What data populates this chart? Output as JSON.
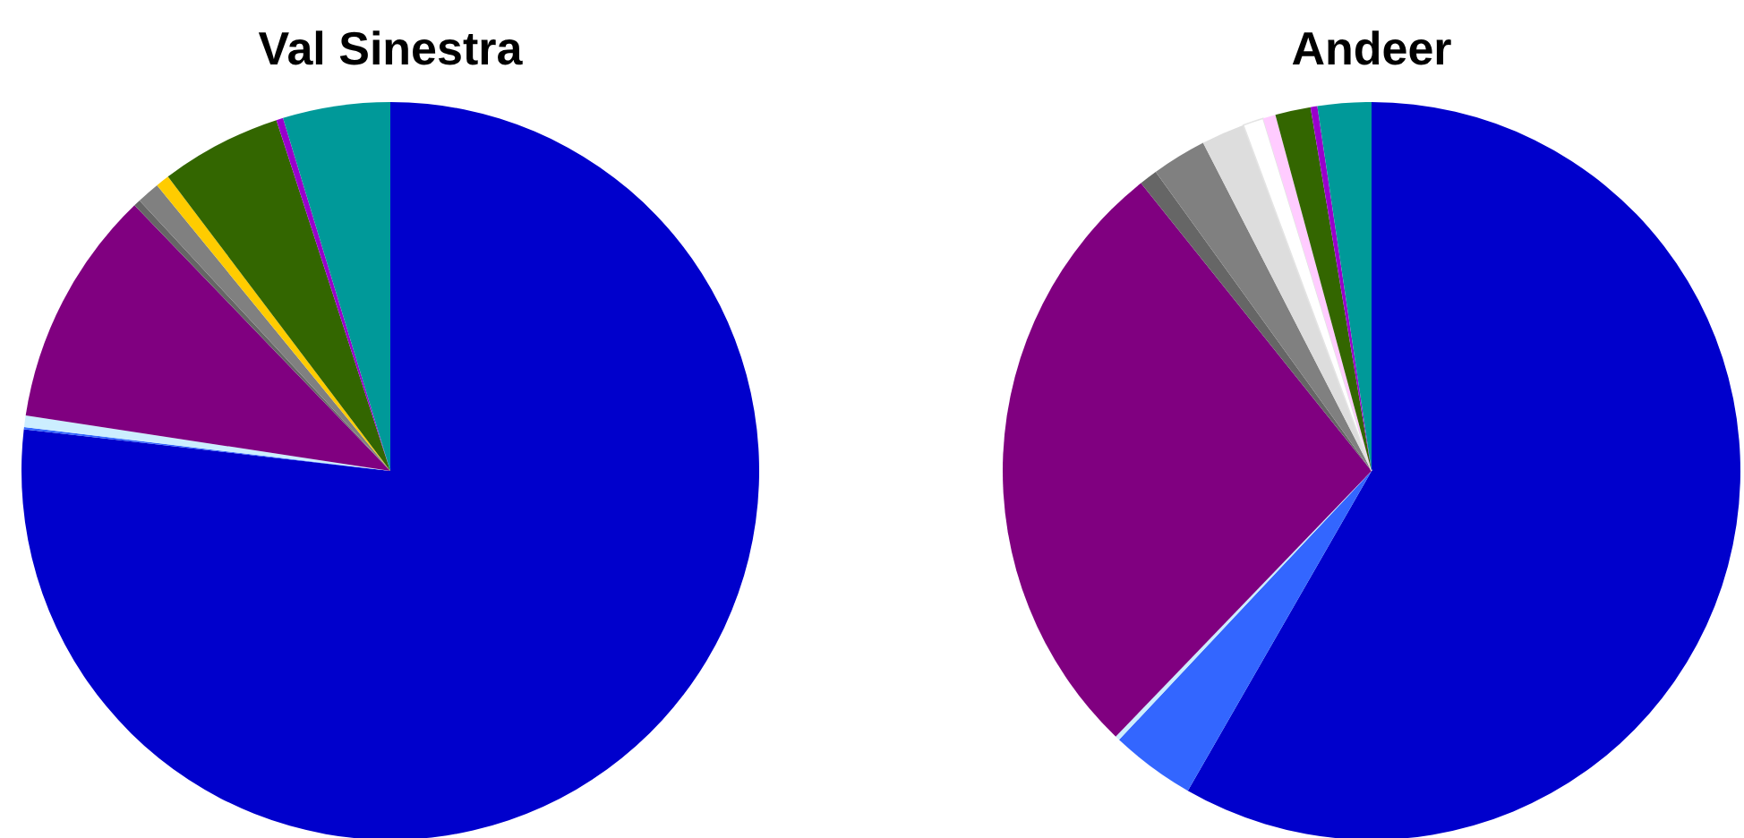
{
  "chart_data": [
    {
      "type": "pie",
      "title": "Val Sinestra",
      "categories": [
        null,
        null,
        null,
        null,
        null,
        null,
        null,
        null,
        null,
        null
      ],
      "values": [
        76.8,
        0.1,
        0.5,
        10.4,
        0.3,
        1.0,
        0.6,
        5.3,
        0.3,
        4.7
      ],
      "colors": [
        "#0000cc",
        "#3366ff",
        "#cceeff",
        "#800080",
        "#666666",
        "#808080",
        "#ffcc00",
        "#336600",
        "#9900cc",
        "#009999"
      ]
    },
    {
      "type": "pie",
      "title": "Andeer",
      "categories": [
        null,
        null,
        null,
        null,
        null,
        null,
        null,
        null,
        null,
        null,
        null,
        null
      ],
      "values": [
        58.3,
        3.7,
        0.2,
        27.05,
        0.8,
        2.4,
        1.9,
        0.9,
        0.55,
        1.55,
        0.3,
        2.35
      ],
      "colors": [
        "#0000cc",
        "#3366ff",
        "#cceeff",
        "#800080",
        "#666666",
        "#808080",
        "#dddddd",
        "#ffffff",
        "#ffccff",
        "#336600",
        "#9900cc",
        "#009999"
      ]
    }
  ]
}
